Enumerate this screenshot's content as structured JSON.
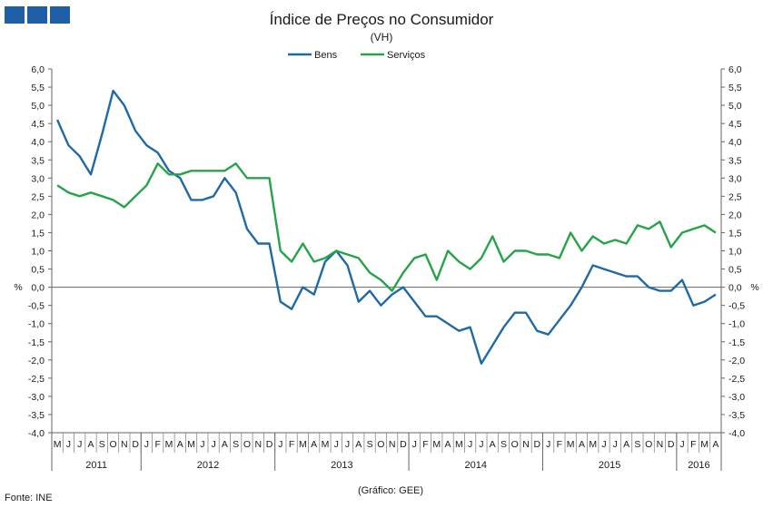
{
  "chart_data": {
    "type": "line",
    "title": "Índice de Preços no Consumidor",
    "subtitle": "(VH)",
    "ylabel_left": "%",
    "ylabel_right": "%",
    "ylim": [
      -4.0,
      6.0
    ],
    "ytick_step": 0.5,
    "ytick_labels": [
      "6,0",
      "5,5",
      "5,0",
      "4,5",
      "4,0",
      "3,5",
      "3,0",
      "2,5",
      "2,0",
      "1,5",
      "1,0",
      "0,5",
      "0,0",
      "-0,5",
      "-1,0",
      "-1,5",
      "-2,0",
      "-2,5",
      "-3,0",
      "-3,5",
      "-4,0"
    ],
    "grid": false,
    "legend": "top-center",
    "months": [
      "M",
      "J",
      "J",
      "A",
      "S",
      "O",
      "N",
      "D",
      "J",
      "F",
      "M",
      "A",
      "M",
      "J",
      "J",
      "A",
      "S",
      "O",
      "N",
      "D",
      "J",
      "F",
      "M",
      "A",
      "M",
      "J",
      "J",
      "A",
      "S",
      "O",
      "N",
      "D",
      "J",
      "F",
      "M",
      "A",
      "M",
      "J",
      "J",
      "A",
      "S",
      "O",
      "N",
      "D",
      "J",
      "F",
      "M",
      "A",
      "M",
      "J",
      "J",
      "A",
      "S",
      "O",
      "N",
      "D",
      "J",
      "F",
      "M",
      "A"
    ],
    "years": [
      {
        "label": "2011",
        "start": 0,
        "count": 8
      },
      {
        "label": "2012",
        "start": 8,
        "count": 12
      },
      {
        "label": "2013",
        "start": 20,
        "count": 12
      },
      {
        "label": "2014",
        "start": 32,
        "count": 12
      },
      {
        "label": "2015",
        "start": 44,
        "count": 12
      },
      {
        "label": "2016",
        "start": 56,
        "count": 4
      }
    ],
    "series": [
      {
        "name": "Bens",
        "color": "#1f6aa5",
        "values": [
          4.6,
          3.9,
          3.6,
          3.1,
          4.2,
          5.4,
          5.0,
          4.3,
          3.9,
          3.7,
          3.2,
          3.0,
          2.4,
          2.4,
          2.5,
          3.0,
          2.6,
          1.6,
          1.2,
          1.2,
          -0.4,
          -0.6,
          0.0,
          -0.2,
          0.7,
          1.0,
          0.6,
          -0.4,
          -0.1,
          -0.5,
          -0.2,
          0.0,
          -0.4,
          -0.8,
          -0.8,
          -1.0,
          -1.2,
          -1.1,
          -2.1,
          -1.6,
          -1.1,
          -0.7,
          -0.7,
          -1.2,
          -1.3,
          -0.9,
          -0.5,
          0.0,
          0.6,
          0.5,
          0.4,
          0.3,
          0.3,
          0.0,
          -0.1,
          -0.1,
          0.2,
          -0.5,
          -0.4,
          -0.2
        ]
      },
      {
        "name": "Serviços",
        "color": "#27a348",
        "values": [
          2.8,
          2.6,
          2.5,
          2.6,
          2.5,
          2.4,
          2.2,
          2.5,
          2.8,
          3.4,
          3.1,
          3.1,
          3.2,
          3.2,
          3.2,
          3.2,
          3.4,
          3.0,
          3.0,
          3.0,
          1.0,
          0.7,
          1.2,
          0.7,
          0.8,
          1.0,
          0.9,
          0.8,
          0.4,
          0.2,
          -0.1,
          0.4,
          0.8,
          0.9,
          0.2,
          1.0,
          0.7,
          0.5,
          0.8,
          1.4,
          0.7,
          1.0,
          1.0,
          0.9,
          0.9,
          0.8,
          1.5,
          1.0,
          1.4,
          1.2,
          1.3,
          1.2,
          1.7,
          1.6,
          1.8,
          1.1,
          1.5,
          1.6,
          1.7,
          1.5
        ]
      }
    ],
    "source": "Fonte: INE",
    "credit": "(Gráfico: GEE)"
  }
}
